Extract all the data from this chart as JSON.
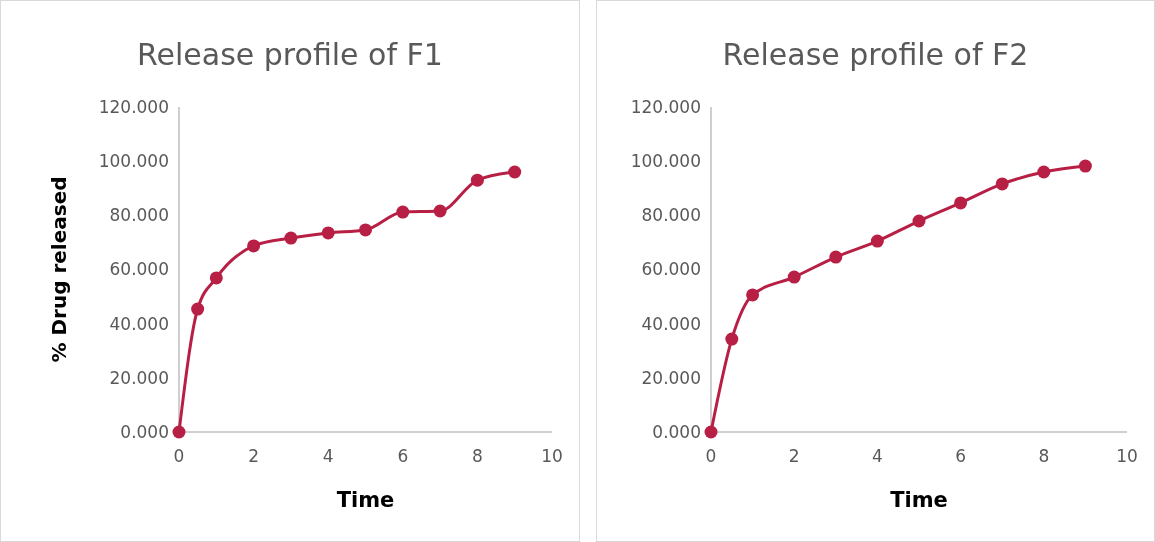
{
  "chart_data": [
    {
      "type": "line",
      "title": "Release profile of F1",
      "xlabel": "Time",
      "ylabel": "% Drug released",
      "x": [
        0,
        0.5,
        1,
        2,
        3,
        4,
        5,
        6,
        7,
        8,
        9
      ],
      "series": [
        {
          "color": "#b81f45",
          "values": [
            0,
            45.4,
            56.9,
            68.7,
            71.6,
            73.5,
            74.6,
            81.2,
            81.6,
            93,
            96
          ]
        }
      ],
      "xlim": [
        0,
        10
      ],
      "xticks": [
        0,
        2,
        4,
        6,
        8,
        10
      ],
      "ylim": [
        0,
        120
      ],
      "yticks": [
        {
          "value": 0,
          "label": "0.000"
        },
        {
          "value": 20,
          "label": "20.000"
        },
        {
          "value": 40,
          "label": "40.000"
        },
        {
          "value": 60,
          "label": "60.000"
        },
        {
          "value": 80,
          "label": "80.000"
        },
        {
          "value": 100,
          "label": "100.000"
        },
        {
          "value": 120,
          "label": "120.000"
        }
      ],
      "grid": false,
      "marker": "circle",
      "line_style": "solid"
    },
    {
      "type": "line",
      "title": "Release profile of F2",
      "xlabel": "Time",
      "x": [
        0,
        0.5,
        1,
        2,
        3,
        4,
        5,
        6,
        7,
        8,
        9
      ],
      "series": [
        {
          "color": "#b81f45",
          "values": [
            0,
            34.3,
            50.6,
            57.2,
            64.6,
            70.5,
            77.9,
            84.6,
            91.6,
            96,
            98.2
          ]
        }
      ],
      "xlim": [
        0,
        10
      ],
      "xticks": [
        0,
        2,
        4,
        6,
        8,
        10
      ],
      "ylim": [
        0,
        120
      ],
      "yticks": [
        {
          "value": 0,
          "label": "0.000"
        },
        {
          "value": 20,
          "label": "20.000"
        },
        {
          "value": 40,
          "label": "40.000"
        },
        {
          "value": 60,
          "label": "60.000"
        },
        {
          "value": 80,
          "label": "80.000"
        },
        {
          "value": 100,
          "label": "100.000"
        },
        {
          "value": 120,
          "label": "120.000"
        }
      ],
      "grid": false,
      "marker": "circle",
      "line_style": "solid"
    }
  ]
}
